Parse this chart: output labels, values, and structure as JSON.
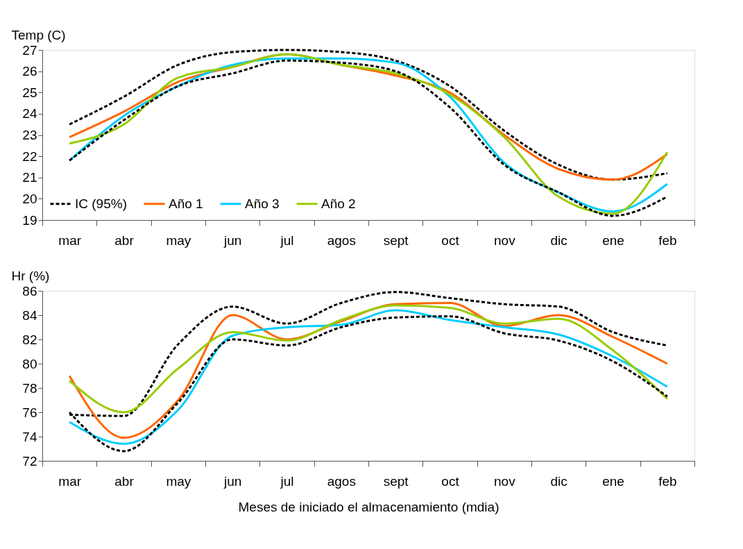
{
  "chart_data": [
    {
      "type": "line",
      "ylabel": "Temp (C)",
      "categories": [
        "mar",
        "abr",
        "may",
        "jun",
        "jul",
        "agos",
        "sept",
        "oct",
        "nov",
        "dic",
        "ene",
        "feb"
      ],
      "ylim": [
        19,
        27
      ],
      "yticks": [
        19,
        20,
        21,
        22,
        23,
        24,
        25,
        26,
        27
      ],
      "grid": false,
      "legend": "bottom left",
      "series": [
        {
          "name": "IC (95%)",
          "color": "#000000",
          "line_style": "dashed",
          "values": [
            23.5,
            24.8,
            26.3,
            26.9,
            27.0,
            26.9,
            26.5,
            25.3,
            23.2,
            21.6,
            20.9,
            21.2
          ]
        },
        {
          "name": "Año 1",
          "color": "#ff6600",
          "line_style": "solid",
          "values": [
            22.9,
            24.1,
            25.5,
            26.2,
            26.8,
            26.3,
            25.8,
            25.0,
            23.0,
            21.4,
            20.9,
            22.1
          ]
        },
        {
          "name": "Año 3",
          "color": "#00ccff",
          "line_style": "solid",
          "values": [
            21.8,
            23.9,
            25.3,
            26.3,
            26.6,
            26.6,
            26.4,
            24.8,
            21.7,
            20.3,
            19.4,
            20.7
          ]
        },
        {
          "name": "Año 2",
          "color": "#99cc00",
          "line_style": "solid",
          "values": [
            22.6,
            23.5,
            25.7,
            26.2,
            26.8,
            26.3,
            25.9,
            24.9,
            22.9,
            20.1,
            19.3,
            22.2
          ]
        },
        {
          "color": "#000000",
          "line_style": "dashed",
          "values": [
            21.8,
            23.7,
            25.3,
            25.9,
            26.5,
            26.4,
            26.0,
            24.3,
            21.6,
            20.3,
            19.2,
            20.1
          ]
        }
      ]
    },
    {
      "type": "line",
      "ylabel": "Hr (%)",
      "xlabel": "Meses de iniciado el almacenamiento (mdia)",
      "categories": [
        "mar",
        "abr",
        "may",
        "jun",
        "jul",
        "agos",
        "sept",
        "oct",
        "nov",
        "dic",
        "ene",
        "feb"
      ],
      "ylim": [
        72,
        86
      ],
      "yticks": [
        72,
        74,
        76,
        78,
        80,
        82,
        84,
        86
      ],
      "grid": false,
      "legend": "bottom right",
      "series": [
        {
          "name": "IC (95%)",
          "color": "#000000",
          "line_style": "dashed",
          "values": [
            75.8,
            75.7,
            81.6,
            84.7,
            83.3,
            85.0,
            85.9,
            85.4,
            84.9,
            84.7,
            82.6,
            81.5
          ]
        },
        {
          "name": "Año 1",
          "color": "#ff6600",
          "line_style": "solid",
          "values": [
            79.0,
            73.9,
            77.0,
            84.0,
            82.0,
            83.5,
            84.9,
            85.0,
            83.1,
            84.0,
            82.2,
            80.0
          ]
        },
        {
          "name": "Año 3",
          "color": "#00ccff",
          "line_style": "solid",
          "values": [
            75.2,
            73.4,
            76.2,
            82.3,
            83.0,
            83.2,
            84.4,
            83.6,
            83.0,
            82.4,
            80.6,
            78.1
          ]
        },
        {
          "name": "Año 2",
          "color": "#99cc00",
          "line_style": "solid",
          "values": [
            78.6,
            76.0,
            79.6,
            82.6,
            81.9,
            83.6,
            84.8,
            84.6,
            83.3,
            83.7,
            81.1,
            77.1
          ]
        },
        {
          "color": "#000000",
          "line_style": "dashed",
          "values": [
            76.0,
            72.8,
            76.8,
            82.0,
            81.5,
            83.0,
            83.8,
            83.9,
            82.5,
            81.9,
            80.2,
            77.3
          ]
        }
      ]
    }
  ]
}
